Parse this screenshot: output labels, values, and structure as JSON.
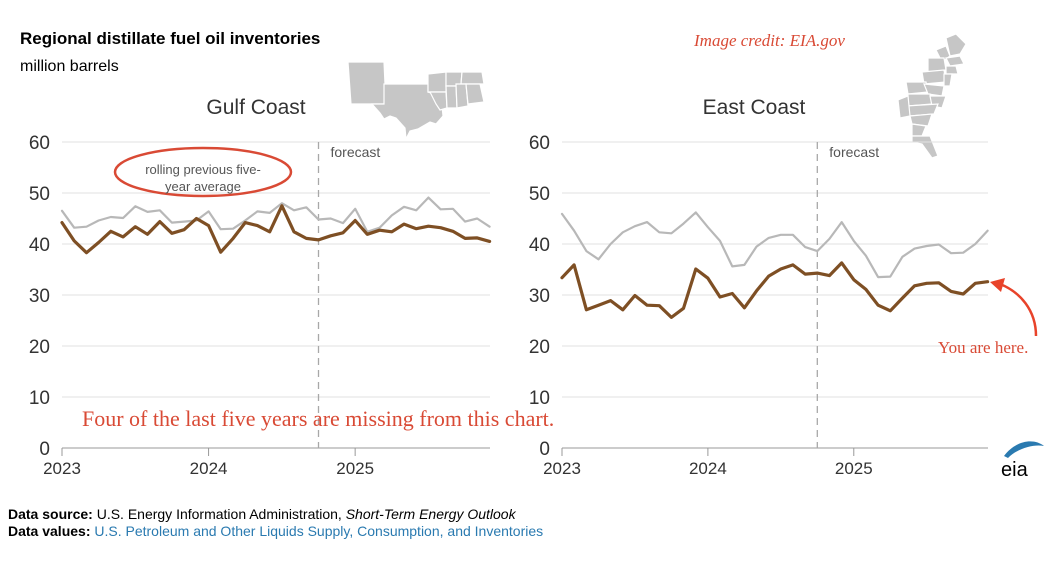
{
  "header": {
    "title": "Regional distillate fuel oil inventories",
    "subtitle": "million barrels",
    "credit": "Image credit: EIA.gov"
  },
  "footer": {
    "source_label": "Data source:",
    "source_text": "U.S. Energy Information Administration,",
    "source_italic": "Short-Term Energy Outlook",
    "values_label": "Data values:",
    "values_link": "U.S. Petroleum and Other Liquids Supply, Consumption, and Inventories"
  },
  "logo_text": "eia",
  "annotations": {
    "rolling_avg": [
      "rolling previous five-",
      "year average"
    ],
    "missing_years": "Four of the last five years are missing from this chart.",
    "you_are_here": "You are here."
  },
  "colors": {
    "inventory": "#7e4f24",
    "average": "#b8b8b8",
    "annotation_red": "#d94a35",
    "grid": "#e2e2e2",
    "map": "#c6c6c6",
    "link": "#2a7ab0"
  },
  "chart_data": [
    {
      "type": "line",
      "title": "Gulf Coast",
      "xlabel": "",
      "ylabel": "million barrels",
      "ylim": [
        0,
        60
      ],
      "yticks": [
        0,
        10,
        20,
        30,
        40,
        50,
        60
      ],
      "xlim": [
        2023,
        2025.92
      ],
      "xticks": [
        2023,
        2024,
        2025
      ],
      "forecast_start": 2024.75,
      "forecast_label": "forecast",
      "series": [
        {
          "name": "rolling previous five-year average",
          "x": [
            2023,
            2023.083,
            2023.167,
            2023.25,
            2023.333,
            2023.417,
            2023.5,
            2023.583,
            2023.667,
            2023.75,
            2023.833,
            2023.917,
            2024,
            2024.083,
            2024.167,
            2024.25,
            2024.333,
            2024.417,
            2024.5,
            2024.583,
            2024.667,
            2024.75,
            2024.833,
            2024.917,
            2025,
            2025.083,
            2025.167,
            2025.25,
            2025.333,
            2025.417,
            2025.5,
            2025.583,
            2025.667,
            2025.75,
            2025.833,
            2025.917
          ],
          "values": [
            46.5,
            43.2,
            43.4,
            44.6,
            45.3,
            45.1,
            47.4,
            46.3,
            46.6,
            44.2,
            44.4,
            44.6,
            46.4,
            42.9,
            43.0,
            44.6,
            46.4,
            46.1,
            48.0,
            46.6,
            47.2,
            44.8,
            45.0,
            44.1,
            46.9,
            42.4,
            43.2,
            45.6,
            47.3,
            46.6,
            49.1,
            46.8,
            46.9,
            44.4,
            45.0,
            43.4
          ]
        },
        {
          "name": "inventories",
          "x": [
            2023,
            2023.083,
            2023.167,
            2023.25,
            2023.333,
            2023.417,
            2023.5,
            2023.583,
            2023.667,
            2023.75,
            2023.833,
            2023.917,
            2024,
            2024.083,
            2024.167,
            2024.25,
            2024.333,
            2024.417,
            2024.5,
            2024.583,
            2024.667,
            2024.75,
            2024.833,
            2024.917,
            2025,
            2025.083,
            2025.167,
            2025.25,
            2025.333,
            2025.417,
            2025.5,
            2025.583,
            2025.667,
            2025.75,
            2025.833,
            2025.917
          ],
          "values": [
            44.2,
            40.6,
            38.3,
            40.3,
            42.5,
            41.4,
            43.4,
            41.9,
            44.4,
            42.1,
            42.8,
            45.0,
            43.6,
            38.4,
            41.1,
            44.2,
            43.6,
            42.4,
            47.5,
            42.4,
            41.1,
            40.8,
            41.6,
            42.2,
            44.6,
            41.9,
            42.7,
            42.4,
            43.9,
            43.0,
            43.5,
            43.2,
            42.5,
            41.1,
            41.2,
            40.5
          ]
        }
      ]
    },
    {
      "type": "line",
      "title": "East Coast",
      "xlabel": "",
      "ylabel": "million barrels",
      "ylim": [
        0,
        60
      ],
      "yticks": [
        0,
        10,
        20,
        30,
        40,
        50,
        60
      ],
      "xlim": [
        2023,
        2025.92
      ],
      "xticks": [
        2023,
        2024,
        2025
      ],
      "forecast_start": 2024.75,
      "forecast_label": "forecast",
      "series": [
        {
          "name": "rolling previous five-year average",
          "x": [
            2023,
            2023.083,
            2023.167,
            2023.25,
            2023.333,
            2023.417,
            2023.5,
            2023.583,
            2023.667,
            2023.75,
            2023.833,
            2023.917,
            2024,
            2024.083,
            2024.167,
            2024.25,
            2024.333,
            2024.417,
            2024.5,
            2024.583,
            2024.667,
            2024.75,
            2024.833,
            2024.917,
            2025,
            2025.083,
            2025.167,
            2025.25,
            2025.333,
            2025.417,
            2025.5,
            2025.583,
            2025.667,
            2025.75,
            2025.833,
            2025.917
          ],
          "values": [
            45.9,
            42.6,
            38.6,
            37.0,
            40.0,
            42.3,
            43.5,
            44.3,
            42.3,
            42.1,
            44.0,
            46.2,
            43.3,
            40.6,
            35.6,
            35.9,
            39.5,
            41.2,
            41.8,
            41.8,
            39.4,
            38.6,
            41.0,
            44.3,
            40.6,
            37.7,
            33.5,
            33.6,
            37.5,
            39.1,
            39.6,
            39.9,
            38.2,
            38.3,
            40.0,
            42.6
          ]
        },
        {
          "name": "inventories",
          "x": [
            2023,
            2023.083,
            2023.167,
            2023.25,
            2023.333,
            2023.417,
            2023.5,
            2023.583,
            2023.667,
            2023.75,
            2023.833,
            2023.917,
            2024,
            2024.083,
            2024.167,
            2024.25,
            2024.333,
            2024.417,
            2024.5,
            2024.583,
            2024.667,
            2024.75,
            2024.833,
            2024.917,
            2025,
            2025.083,
            2025.167,
            2025.25,
            2025.333,
            2025.417,
            2025.5,
            2025.583,
            2025.667,
            2025.75,
            2025.833,
            2025.917
          ],
          "values": [
            33.4,
            35.9,
            27.1,
            28.0,
            28.9,
            27.1,
            29.9,
            28.0,
            27.9,
            25.6,
            27.4,
            35.1,
            33.3,
            29.6,
            30.3,
            27.5,
            30.8,
            33.7,
            35.1,
            35.9,
            34.1,
            34.3,
            33.8,
            36.3,
            33.0,
            31.1,
            28.0,
            26.9,
            29.4,
            31.8,
            32.3,
            32.4,
            30.7,
            30.2,
            32.3,
            32.6
          ]
        }
      ]
    }
  ]
}
